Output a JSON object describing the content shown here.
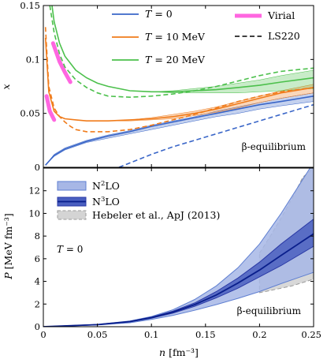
{
  "chart_data": [
    {
      "type": "line",
      "panel": "top",
      "ylabel": "x",
      "xlim": [
        0,
        0.25
      ],
      "ylim": [
        0,
        0.15
      ],
      "yticks": [
        "0",
        "0.05",
        "0.1",
        "0.15"
      ],
      "annotation": "β-equilibrium",
      "legend_position": "top",
      "series": [
        {
          "name": "T = 0",
          "label_italic": "T",
          "label_rest": " = 0",
          "color": "#3a66c8",
          "x": [
            0.002,
            0.01,
            0.02,
            0.04,
            0.06,
            0.08,
            0.1,
            0.12,
            0.14,
            0.16,
            0.18,
            0.2,
            0.22,
            0.25
          ],
          "y": [
            0.002,
            0.011,
            0.017,
            0.024,
            0.029,
            0.033,
            0.038,
            0.042,
            0.046,
            0.05,
            0.054,
            0.058,
            0.061,
            0.066
          ],
          "band_lo": [
            0.002,
            0.01,
            0.016,
            0.023,
            0.027,
            0.031,
            0.035,
            0.039,
            0.043,
            0.047,
            0.05,
            0.054,
            0.057,
            0.061
          ],
          "band_hi": [
            0.002,
            0.012,
            0.018,
            0.025,
            0.03,
            0.034,
            0.039,
            0.043,
            0.047,
            0.052,
            0.056,
            0.06,
            0.064,
            0.069
          ]
        },
        {
          "name": "T = 10 MeV",
          "label_italic": "T",
          "label_rest": " = 10 MeV",
          "color": "#f07c1c",
          "x": [
            0.002,
            0.005,
            0.01,
            0.015,
            0.02,
            0.03,
            0.04,
            0.06,
            0.08,
            0.1,
            0.12,
            0.14,
            0.16,
            0.18,
            0.2,
            0.22,
            0.25
          ],
          "y": [
            0.12,
            0.07,
            0.052,
            0.047,
            0.045,
            0.044,
            0.043,
            0.043,
            0.044,
            0.045,
            0.047,
            0.05,
            0.054,
            0.059,
            0.064,
            0.069,
            0.074
          ],
          "band_lo": [
            0.12,
            0.07,
            0.052,
            0.047,
            0.045,
            0.044,
            0.043,
            0.043,
            0.043,
            0.044,
            0.045,
            0.048,
            0.051,
            0.055,
            0.06,
            0.064,
            0.069
          ],
          "band_hi": [
            0.12,
            0.07,
            0.052,
            0.047,
            0.045,
            0.044,
            0.043,
            0.043,
            0.044,
            0.046,
            0.049,
            0.052,
            0.056,
            0.061,
            0.066,
            0.071,
            0.077
          ]
        },
        {
          "name": "T = 20 MeV",
          "label_italic": "T",
          "label_rest": " = 20 MeV",
          "color": "#4cc04c",
          "x": [
            0.008,
            0.01,
            0.015,
            0.02,
            0.03,
            0.04,
            0.05,
            0.06,
            0.08,
            0.1,
            0.12,
            0.14,
            0.16,
            0.18,
            0.2,
            0.22,
            0.25
          ],
          "y": [
            0.15,
            0.135,
            0.115,
            0.103,
            0.09,
            0.083,
            0.078,
            0.075,
            0.071,
            0.07,
            0.07,
            0.071,
            0.072,
            0.074,
            0.076,
            0.079,
            0.083
          ],
          "band_lo": [
            0.15,
            0.135,
            0.115,
            0.103,
            0.09,
            0.083,
            0.078,
            0.075,
            0.071,
            0.07,
            0.069,
            0.069,
            0.069,
            0.069,
            0.07,
            0.071,
            0.073
          ],
          "band_hi": [
            0.15,
            0.135,
            0.115,
            0.103,
            0.09,
            0.083,
            0.078,
            0.075,
            0.071,
            0.07,
            0.071,
            0.073,
            0.075,
            0.078,
            0.081,
            0.085,
            0.09
          ]
        },
        {
          "name": "Virial",
          "color": "#ff66e0",
          "style": "thick",
          "dashed": false,
          "segments": [
            {
              "x": [
                0.003,
                0.006,
                0.01
              ],
              "y": [
                0.066,
                0.052,
                0.044
              ]
            },
            {
              "x": [
                0.009,
                0.015,
                0.02,
                0.025
              ],
              "y": [
                0.115,
                0.098,
                0.088,
                0.079
              ]
            }
          ]
        },
        {
          "name": "LS220",
          "color": "#000000",
          "dashed": true,
          "legend_only": true
        },
        {
          "name": "LS220 (T = 0)",
          "color": "#3a66c8",
          "dashed": true,
          "legend": false,
          "x": [
            0.07,
            0.08,
            0.1,
            0.12,
            0.14,
            0.16,
            0.18,
            0.2,
            0.22,
            0.25
          ],
          "y": [
            0.0,
            0.004,
            0.012,
            0.019,
            0.025,
            0.031,
            0.037,
            0.043,
            0.049,
            0.058
          ]
        },
        {
          "name": "LS220 (T = 10 MeV)",
          "color": "#f07c1c",
          "dashed": true,
          "legend": false,
          "x": [
            0.002,
            0.005,
            0.01,
            0.015,
            0.02,
            0.025,
            0.03,
            0.04,
            0.06,
            0.08,
            0.1,
            0.12,
            0.14,
            0.16,
            0.18,
            0.2,
            0.22,
            0.25
          ],
          "y": [
            0.13,
            0.075,
            0.055,
            0.047,
            0.042,
            0.038,
            0.035,
            0.033,
            0.033,
            0.035,
            0.039,
            0.044,
            0.049,
            0.055,
            0.061,
            0.066,
            0.07,
            0.074
          ]
        },
        {
          "name": "LS220 (T = 20 MeV)",
          "color": "#4cc04c",
          "dashed": true,
          "legend": false,
          "x": [
            0.006,
            0.01,
            0.015,
            0.02,
            0.03,
            0.04,
            0.05,
            0.06,
            0.08,
            0.1,
            0.12,
            0.14,
            0.16,
            0.18,
            0.2,
            0.22,
            0.25
          ],
          "y": [
            0.15,
            0.125,
            0.105,
            0.093,
            0.081,
            0.074,
            0.069,
            0.066,
            0.065,
            0.066,
            0.068,
            0.071,
            0.075,
            0.08,
            0.085,
            0.089,
            0.092
          ]
        }
      ]
    },
    {
      "type": "line",
      "panel": "bottom",
      "xlabel": "n [fm⁻³]",
      "xlabel_italic": "n",
      "xlabel_rest": " [fm⁻³]",
      "ylabel": "P [MeV fm⁻³]",
      "ylabel_italic": "P",
      "ylabel_rest": " [MeV fm⁻³]",
      "xlim": [
        0,
        0.25
      ],
      "ylim": [
        0,
        14
      ],
      "xticks": [
        "0",
        "0.05",
        "0.1",
        "0.15",
        "0.2",
        "0.25"
      ],
      "yticks": [
        "0",
        "2",
        "4",
        "6",
        "8",
        "10",
        "12"
      ],
      "annotations": [
        "T = 0",
        "β-equilibrium"
      ],
      "annotation_T_italic": "T",
      "annotation_T_rest": " = 0",
      "annotation_beta": "β-equilibrium",
      "legend_position": "top-left",
      "series": [
        {
          "name": "N²LO",
          "label_main": "N",
          "label_sup": "2",
          "label_tail": "LO",
          "type": "band",
          "color": "#a7b7e6",
          "edge": "#5f7fd1",
          "x": [
            0,
            0.05,
            0.08,
            0.1,
            0.12,
            0.14,
            0.16,
            0.18,
            0.2,
            0.22,
            0.25
          ],
          "lo": [
            0,
            0.15,
            0.35,
            0.65,
            1.0,
            1.45,
            1.95,
            2.5,
            3.1,
            3.8,
            4.8
          ],
          "hi": [
            0,
            0.2,
            0.5,
            0.9,
            1.5,
            2.4,
            3.6,
            5.2,
            7.3,
            10.0,
            14.5
          ]
        },
        {
          "name": "N³LO",
          "label_main": "N",
          "label_sup": "3",
          "label_tail": "LO",
          "type": "band",
          "color": "#4a5fc0",
          "edge": "#2b3aa6",
          "x": [
            0,
            0.05,
            0.08,
            0.1,
            0.12,
            0.14,
            0.16,
            0.18,
            0.2,
            0.22,
            0.25
          ],
          "lo": [
            0,
            0.17,
            0.42,
            0.75,
            1.2,
            1.8,
            2.55,
            3.4,
            4.4,
            5.4,
            7.1
          ],
          "hi": [
            0,
            0.19,
            0.47,
            0.85,
            1.38,
            2.1,
            3.1,
            4.3,
            5.7,
            7.3,
            9.5
          ]
        },
        {
          "name": "N³LO central",
          "type": "line",
          "color": "#0a1f8c",
          "legend": false,
          "x": [
            0,
            0.05,
            0.08,
            0.1,
            0.12,
            0.14,
            0.16,
            0.18,
            0.2,
            0.22,
            0.25
          ],
          "y": [
            0,
            0.18,
            0.45,
            0.8,
            1.29,
            1.95,
            2.8,
            3.85,
            5.0,
            6.3,
            8.2
          ]
        },
        {
          "name": "Hebeler et al., ApJ (2013)",
          "type": "band",
          "color": "#d4d4d4",
          "edge": "#9a9a9a",
          "dashed_edge": true,
          "x": [
            0.2,
            0.21,
            0.22,
            0.23,
            0.24,
            0.25
          ],
          "lo": [
            3.0,
            3.2,
            3.4,
            3.6,
            3.9,
            4.2
          ],
          "hi": [
            6.5,
            8.0,
            9.6,
            11.3,
            13.2,
            14.0
          ]
        }
      ]
    }
  ]
}
